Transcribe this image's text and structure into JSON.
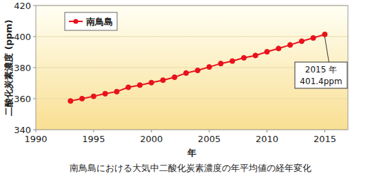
{
  "chart_data": {
    "type": "line",
    "caption": "南鳥島における大気中二酸化炭素濃度の年平均値の経年変化",
    "x_label": "年",
    "y_label": "二酸化炭素濃度 (ppm)",
    "x": [
      1993,
      1994,
      1995,
      1996,
      1997,
      1998,
      1999,
      2000,
      2001,
      2002,
      2003,
      2004,
      2005,
      2006,
      2007,
      2008,
      2009,
      2010,
      2011,
      2012,
      2013,
      2014,
      2015
    ],
    "series": [
      {
        "name": "南鳥島",
        "color": "#e8121c",
        "marker": "circle",
        "line_style": "solid",
        "values": [
          358.5,
          360.0,
          361.5,
          363.2,
          364.5,
          367.3,
          368.7,
          370.3,
          371.9,
          373.8,
          376.5,
          378.2,
          380.4,
          382.6,
          384.2,
          386.3,
          387.8,
          390.2,
          392.3,
          394.6,
          397.0,
          399.1,
          401.4
        ]
      }
    ],
    "annotation": {
      "text": [
        "2015 年",
        "401.4ppm"
      ]
    },
    "xlim": [
      1990,
      2017
    ],
    "xticks": [
      1990,
      1995,
      2000,
      2005,
      2010,
      2015
    ],
    "ylim": [
      340,
      420
    ],
    "yticks": [
      340,
      360,
      380,
      400,
      420
    ],
    "grid": true,
    "legend": "upper left"
  }
}
